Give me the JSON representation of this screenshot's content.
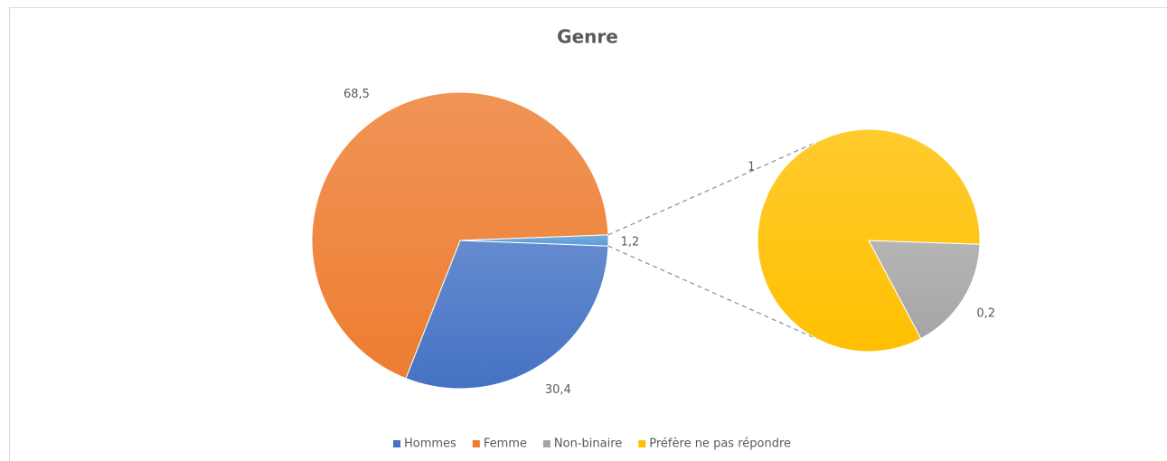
{
  "chart_data": {
    "type": "pie_of_pie",
    "title": "Genre",
    "categories": [
      "Hommes",
      "Femme",
      "Non-binaire",
      "Préfère ne pas répondre"
    ],
    "values": [
      30.4,
      68.5,
      0.2,
      1
    ],
    "value_labels": [
      "30,4",
      "68,5",
      "0,2",
      "1"
    ],
    "colors": [
      "#4472c4",
      "#ed7d31",
      "#a5a5a5",
      "#ffc000"
    ],
    "split_count": 2,
    "split_total": 1.2,
    "split_total_label": "1,2",
    "legend": "bottom"
  }
}
